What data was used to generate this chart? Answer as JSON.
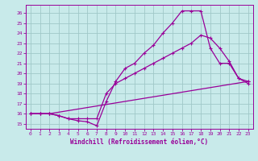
{
  "xlabel": "Windchill (Refroidissement éolien,°C)",
  "xlim": [
    -0.5,
    23.5
  ],
  "ylim": [
    14.5,
    26.8
  ],
  "xticks": [
    0,
    1,
    2,
    3,
    4,
    5,
    6,
    7,
    8,
    9,
    10,
    11,
    12,
    13,
    14,
    15,
    16,
    17,
    18,
    19,
    20,
    21,
    22,
    23
  ],
  "yticks": [
    15,
    16,
    17,
    18,
    19,
    20,
    21,
    22,
    23,
    24,
    25,
    26
  ],
  "bg_color": "#c8eaea",
  "grid_color": "#a0c8c8",
  "line_color": "#990099",
  "line1_x": [
    0,
    1,
    2,
    3,
    4,
    5,
    6,
    7,
    8,
    9,
    10,
    11,
    12,
    13,
    14,
    15,
    16,
    17,
    18,
    19,
    20,
    21,
    22,
    23
  ],
  "line1_y": [
    16.0,
    16.0,
    16.0,
    15.8,
    15.5,
    15.3,
    15.2,
    14.8,
    17.2,
    19.2,
    20.5,
    21.0,
    22.0,
    22.8,
    24.0,
    25.0,
    26.2,
    26.2,
    26.2,
    22.5,
    21.0,
    21.0,
    19.5,
    19.2
  ],
  "line2_x": [
    0,
    1,
    2,
    3,
    4,
    5,
    6,
    7,
    8,
    9,
    10,
    11,
    12,
    13,
    14,
    15,
    16,
    17,
    18,
    19,
    20,
    21,
    22,
    23
  ],
  "line2_y": [
    16.0,
    16.0,
    16.0,
    15.8,
    15.5,
    15.5,
    15.5,
    15.5,
    18.0,
    19.0,
    19.5,
    20.0,
    20.5,
    21.0,
    21.5,
    22.0,
    22.5,
    23.0,
    23.8,
    23.5,
    22.5,
    21.2,
    19.5,
    19.0
  ],
  "line3_x": [
    0,
    1,
    2,
    23
  ],
  "line3_y": [
    16.0,
    16.0,
    16.0,
    19.2
  ],
  "marker": "+",
  "markersize": 3,
  "linewidth": 0.9,
  "tick_fontsize": 4.5,
  "xlabel_fontsize": 5.5
}
